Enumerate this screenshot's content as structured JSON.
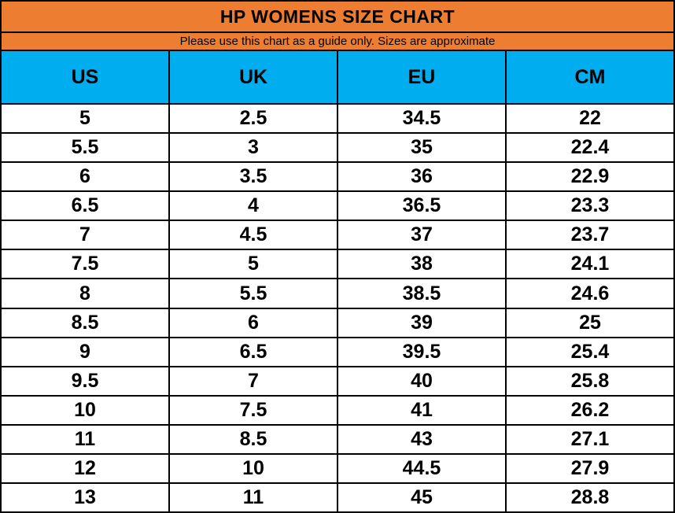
{
  "title": "HP WOMENS SIZE CHART",
  "subtitle": "Please use this chart as a guide only. Sizes are approximate",
  "colors": {
    "title_background": "#ED7D31",
    "header_background": "#00AEEF",
    "row_background": "#FFFFFF",
    "border": "#000000",
    "text": "#000000"
  },
  "table": {
    "headers": [
      "US",
      "UK",
      "EU",
      "CM"
    ],
    "rows": [
      {
        "us": "5",
        "uk": "2.5",
        "eu": "34.5",
        "cm": "22"
      },
      {
        "us": "5.5",
        "uk": "3",
        "eu": "35",
        "cm": "22.4"
      },
      {
        "us": "6",
        "uk": "3.5",
        "eu": "36",
        "cm": "22.9"
      },
      {
        "us": "6.5",
        "uk": "4",
        "eu": "36.5",
        "cm": "23.3"
      },
      {
        "us": "7",
        "uk": "4.5",
        "eu": "37",
        "cm": "23.7"
      },
      {
        "us": "7.5",
        "uk": "5",
        "eu": "38",
        "cm": "24.1"
      },
      {
        "us": "8",
        "uk": "5.5",
        "eu": "38.5",
        "cm": "24.6"
      },
      {
        "us": "8.5",
        "uk": "6",
        "eu": "39",
        "cm": "25"
      },
      {
        "us": "9",
        "uk": "6.5",
        "eu": "39.5",
        "cm": "25.4"
      },
      {
        "us": "9.5",
        "uk": "7",
        "eu": "40",
        "cm": "25.8"
      },
      {
        "us": "10",
        "uk": "7.5",
        "eu": "41",
        "cm": "26.2"
      },
      {
        "us": "11",
        "uk": "8.5",
        "eu": "43",
        "cm": "27.1"
      },
      {
        "us": "12",
        "uk": "10",
        "eu": "44.5",
        "cm": "27.9"
      },
      {
        "us": "13",
        "uk": "11",
        "eu": "45",
        "cm": "28.8"
      }
    ]
  },
  "chart_data": {
    "type": "table",
    "title": "HP WOMENS SIZE CHART",
    "subtitle": "Please use this chart as a guide only. Sizes are approximate",
    "columns": [
      "US",
      "UK",
      "EU",
      "CM"
    ],
    "rows": [
      [
        5,
        2.5,
        34.5,
        22
      ],
      [
        5.5,
        3,
        35,
        22.4
      ],
      [
        6,
        3.5,
        36,
        22.9
      ],
      [
        6.5,
        4,
        36.5,
        23.3
      ],
      [
        7,
        4.5,
        37,
        23.7
      ],
      [
        7.5,
        5,
        38,
        24.1
      ],
      [
        8,
        5.5,
        38.5,
        24.6
      ],
      [
        8.5,
        6,
        39,
        25
      ],
      [
        9,
        6.5,
        39.5,
        25.4
      ],
      [
        9.5,
        7,
        40,
        25.8
      ],
      [
        10,
        7.5,
        41,
        26.2
      ],
      [
        11,
        8.5,
        43,
        27.1
      ],
      [
        12,
        10,
        44.5,
        27.9
      ],
      [
        13,
        11,
        45,
        28.8
      ]
    ]
  }
}
